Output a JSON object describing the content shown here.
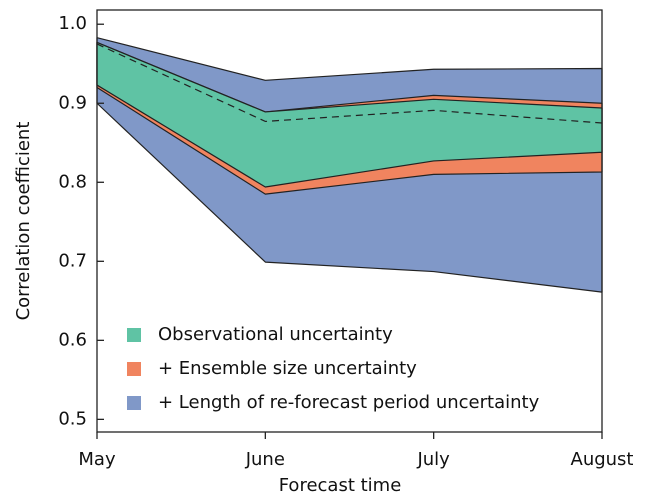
{
  "chart_data": {
    "type": "band",
    "x_label": "Forecast time",
    "y_label": "Correlation coefficient",
    "categories": [
      "May",
      "June",
      "July",
      "August"
    ],
    "ylim": [
      0.484,
      1.018
    ],
    "yticks": [
      0.5,
      0.6,
      0.7,
      0.8,
      0.9,
      {
        "value": 1.0,
        "label": "1.0"
      }
    ],
    "legend": "lower left",
    "series": [
      {
        "name": "Observational uncertainty",
        "color": "#5fc3a4",
        "lower": [
          0.923,
          0.794,
          0.827,
          0.838
        ],
        "upper": [
          0.977,
          0.889,
          0.905,
          0.894
        ]
      },
      {
        "name": "+ Ensemble size uncertainty",
        "color": "#f0845f",
        "lower": [
          0.92,
          0.785,
          0.81,
          0.813
        ],
        "upper": [
          0.977,
          0.889,
          0.91,
          0.9
        ]
      },
      {
        "name": "+ Length of re-forecast period uncertainty",
        "color": "#8098c8",
        "lower": [
          0.9,
          0.699,
          0.687,
          0.661
        ],
        "upper": [
          0.983,
          0.929,
          0.943,
          0.944
        ]
      }
    ],
    "central_values": [
      0.975,
      0.877,
      0.891,
      0.875
    ]
  }
}
